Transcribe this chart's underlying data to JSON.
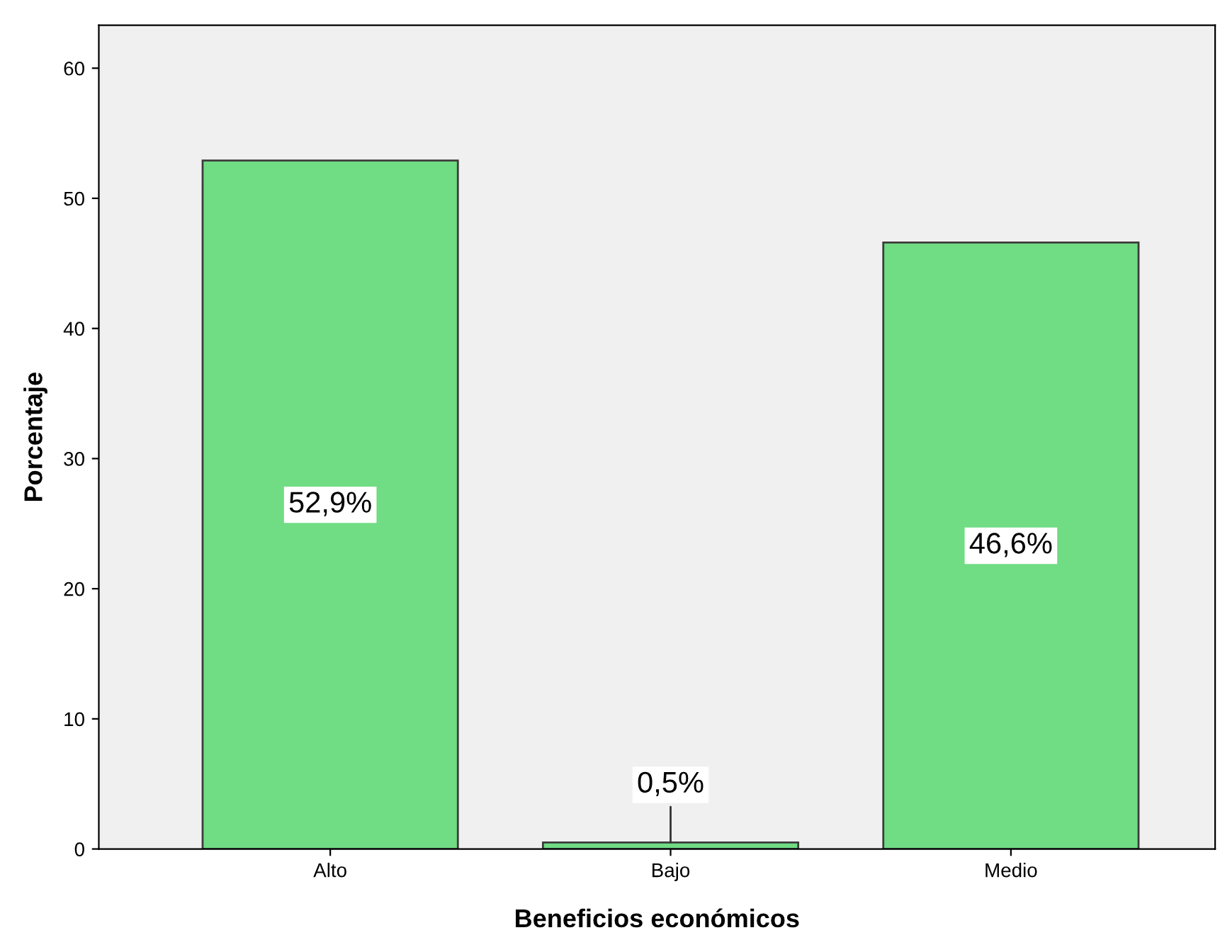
{
  "chart_data": {
    "type": "bar",
    "xlabel": "Beneficios económicos",
    "ylabel": "Porcentaje",
    "categories": [
      "Alto",
      "Bajo",
      "Medio"
    ],
    "values": [
      52.9,
      0.5,
      46.6
    ],
    "value_labels": [
      "52,9%",
      "0,5%",
      "46,6%"
    ],
    "color": "#70dc83",
    "ylim": [
      0,
      63.3
    ],
    "yticks": [
      0,
      10,
      20,
      30,
      40,
      50,
      60
    ],
    "grid": false
  }
}
